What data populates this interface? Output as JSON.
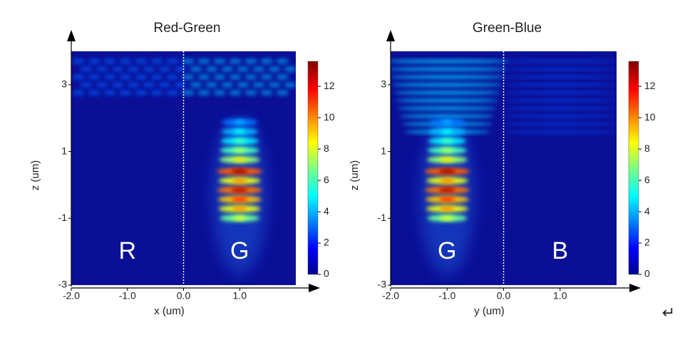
{
  "chart_data": [
    {
      "type": "heatmap",
      "title": "Red-Green",
      "x_label": "x (um)",
      "y_label": "z (um)",
      "xlim": [
        -2,
        2
      ],
      "xticks": [
        {
          "value": -2,
          "label": "-2.0"
        },
        {
          "value": -1,
          "label": "-1.0"
        },
        {
          "value": 0,
          "label": "0.0"
        },
        {
          "value": 1,
          "label": "1.0"
        }
      ],
      "ylim": [
        -3,
        4
      ],
      "yticks": [
        -3,
        -1,
        1,
        3
      ],
      "divider_x": 0,
      "regions": [
        "R",
        "G"
      ],
      "clim": [
        0,
        13.6
      ],
      "cticks": [
        0,
        2,
        4,
        6,
        8,
        10,
        12
      ]
    },
    {
      "type": "heatmap",
      "title": "Green-Blue",
      "x_label": "y (um)",
      "y_label": "z (um)",
      "xlim": [
        -2,
        2
      ],
      "xticks": [
        {
          "value": -2,
          "label": "-2.0"
        },
        {
          "value": -1,
          "label": "-1.0"
        },
        {
          "value": 0,
          "label": "0.0"
        },
        {
          "value": 1,
          "label": "1.0"
        }
      ],
      "ylim": [
        -3,
        4
      ],
      "yticks": [
        -3,
        -1,
        1,
        3
      ],
      "divider_x": 0,
      "regions": [
        "G",
        "B"
      ],
      "clim": [
        0,
        13.6
      ],
      "cticks": [
        0,
        2,
        4,
        6,
        8,
        10,
        12
      ]
    }
  ],
  "return_symbol": "↵"
}
